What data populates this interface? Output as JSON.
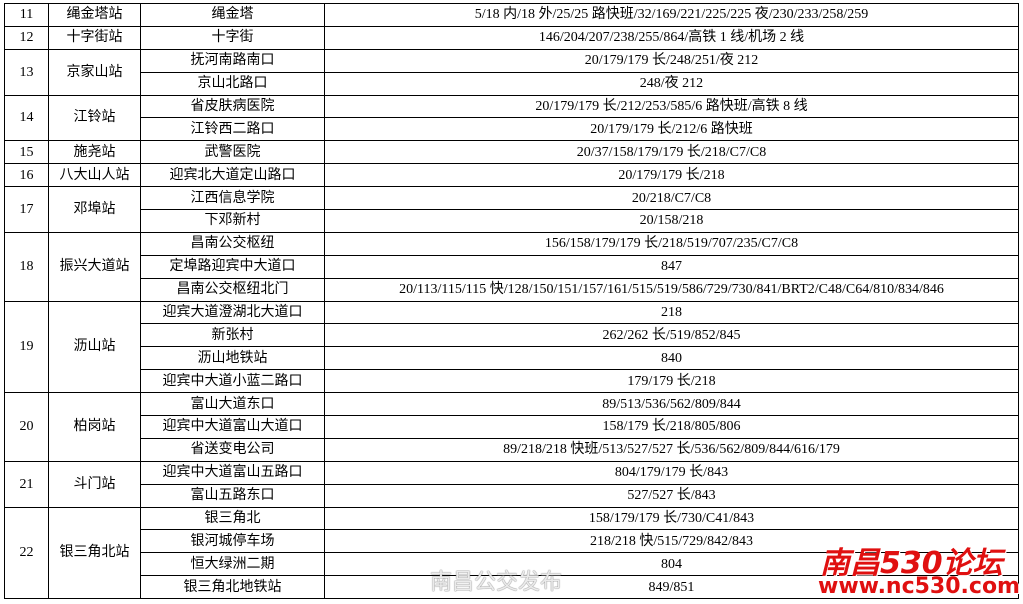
{
  "table": {
    "groups": [
      {
        "no": "11",
        "station": "绳金塔站",
        "stops": [
          {
            "name": "绳金塔",
            "routes": "5/18 内/18 外/25/25 路快班/32/169/221/225/225 夜/230/233/258/259"
          }
        ]
      },
      {
        "no": "12",
        "station": "十字街站",
        "stops": [
          {
            "name": "十字街",
            "routes": "146/204/207/238/255/864/高铁 1 线/机场 2 线"
          }
        ]
      },
      {
        "no": "13",
        "station": "京家山站",
        "stops": [
          {
            "name": "抚河南路南口",
            "routes": "20/179/179 长/248/251/夜 212"
          },
          {
            "name": "京山北路口",
            "routes": "248/夜 212"
          }
        ]
      },
      {
        "no": "14",
        "station": "江铃站",
        "stops": [
          {
            "name": "省皮肤病医院",
            "routes": "20/179/179 长/212/253/585/6 路快班/高铁 8 线"
          },
          {
            "name": "江铃西二路口",
            "routes": "20/179/179 长/212/6 路快班"
          }
        ]
      },
      {
        "no": "15",
        "station": "施尧站",
        "stops": [
          {
            "name": "武警医院",
            "routes": "20/37/158/179/179 长/218/C7/C8"
          }
        ]
      },
      {
        "no": "16",
        "station": "八大山人站",
        "stops": [
          {
            "name": "迎宾北大道定山路口",
            "routes": "20/179/179 长/218"
          }
        ]
      },
      {
        "no": "17",
        "station": "邓埠站",
        "stops": [
          {
            "name": "江西信息学院",
            "routes": "20/218/C7/C8"
          },
          {
            "name": "下邓新村",
            "routes": "20/158/218"
          }
        ]
      },
      {
        "no": "18",
        "station": "振兴大道站",
        "stops": [
          {
            "name": "昌南公交枢纽",
            "routes": "156/158/179/179 长/218/519/707/235/C7/C8"
          },
          {
            "name": "定埠路迎宾中大道口",
            "routes": "847"
          },
          {
            "name": "昌南公交枢纽北门",
            "routes": "20/113/115/115 快/128/150/151/157/161/515/519/586/729/730/841/BRT2/C48/C64/810/834/846"
          }
        ]
      },
      {
        "no": "19",
        "station": "沥山站",
        "stops": [
          {
            "name": "迎宾大道澄湖北大道口",
            "routes": "218"
          },
          {
            "name": "新张村",
            "routes": "262/262 长/519/852/845"
          },
          {
            "name": "沥山地铁站",
            "routes": "840"
          },
          {
            "name": "迎宾中大道小蓝二路口",
            "routes": "179/179 长/218"
          }
        ]
      },
      {
        "no": "20",
        "station": "柏岗站",
        "stops": [
          {
            "name": "富山大道东口",
            "routes": "89/513/536/562/809/844"
          },
          {
            "name": "迎宾中大道富山大道口",
            "routes": "158/179 长/218/805/806"
          },
          {
            "name": "省送变电公司",
            "routes": "89/218/218 快班/513/527/527 长/536/562/809/844/616/179"
          }
        ]
      },
      {
        "no": "21",
        "station": "斗门站",
        "stops": [
          {
            "name": "迎宾中大道富山五路口",
            "routes": "804/179/179 长/843"
          },
          {
            "name": "富山五路东口",
            "routes": "527/527 长/843"
          }
        ]
      },
      {
        "no": "22",
        "station": "银三角北站",
        "stops": [
          {
            "name": "银三角北",
            "routes": "158/179/179 长/730/C41/843"
          },
          {
            "name": "银河城停车场",
            "routes": "218/218 快/515/729/842/843"
          },
          {
            "name": "恒大绿洲二期",
            "routes": "804"
          },
          {
            "name": "银三角北地铁站",
            "routes": "849/851"
          }
        ]
      }
    ]
  },
  "watermark": {
    "weibo": "南昌公交发布",
    "forum": "南昌530论坛",
    "url": "www.nc530.com"
  }
}
